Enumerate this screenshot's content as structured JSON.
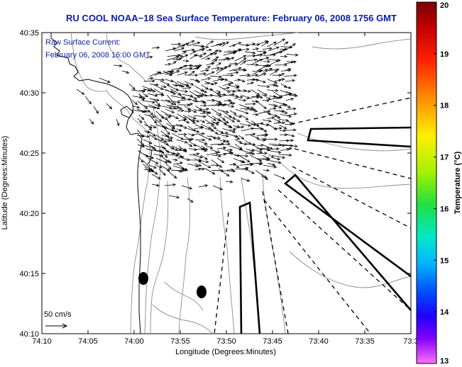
{
  "title": "RU COOL  NOAA−18  Sea Surface Temperature:  February 06, 2008 1756 GMT",
  "annotation": {
    "line1": "Raw Surface Current:",
    "line2": "February 06, 2008 16:00 GMT"
  },
  "axes": {
    "xlabel": "Longitude (Degrees:Minutes)",
    "ylabel": "Latitude (Degrees:Minutes)",
    "x_ticks": [
      "74:10",
      "74:05",
      "74:00",
      "73:55",
      "73:50",
      "73:45",
      "73:40",
      "73:35",
      "73:3"
    ],
    "y_ticks": [
      "40:35",
      "40:30",
      "40:25",
      "40:20",
      "40:15",
      "40:10"
    ]
  },
  "scale": {
    "label": "50 cm/s"
  },
  "colorbar": {
    "label": "Temperature (°C)",
    "min": 13,
    "max": 20,
    "ticks": [
      "20",
      "19",
      "18",
      "17",
      "16",
      "15",
      "14",
      "13"
    ]
  },
  "colors": {
    "title": "#0b1fa8",
    "note": "#0b1fa8",
    "coast": "#000000",
    "bathymetry": "#8c8c8c",
    "arrows": "#000000"
  }
}
